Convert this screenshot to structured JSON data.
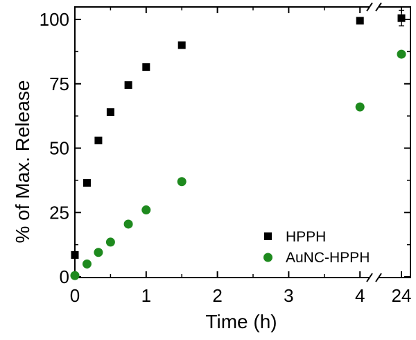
{
  "chart_data": {
    "type": "scatter",
    "xlabel": "Time (h)",
    "ylabel": "% of Max. Release",
    "x_ticks": [
      "0",
      "1",
      "2",
      "3",
      "4",
      "24"
    ],
    "y_ticks": [
      "0",
      "25",
      "50",
      "75",
      "100"
    ],
    "ylim": [
      0,
      105
    ],
    "x_axis_break": "between 4 and 24 h",
    "legend_position": "bottom-right",
    "series": [
      {
        "name": "HPPH",
        "marker": "square",
        "color": "#000000",
        "x": [
          0,
          0.17,
          0.33,
          0.5,
          0.75,
          1,
          1.5,
          4,
          24
        ],
        "y": [
          8.5,
          36.5,
          53,
          64,
          74.5,
          81.5,
          90,
          99.5,
          100.5
        ],
        "error": [
          0,
          0,
          0,
          0,
          0,
          0,
          0,
          0,
          3
        ]
      },
      {
        "name": "AuNC-HPPH",
        "marker": "circle",
        "color": "#1e8a1e",
        "x": [
          0,
          0.17,
          0.33,
          0.5,
          0.75,
          1,
          1.5,
          4,
          24
        ],
        "y": [
          0.5,
          5,
          9.5,
          13.5,
          20.5,
          26,
          37,
          66,
          86.5
        ],
        "error": [
          0,
          0,
          0,
          0,
          0,
          0,
          0,
          0,
          0
        ]
      }
    ]
  }
}
